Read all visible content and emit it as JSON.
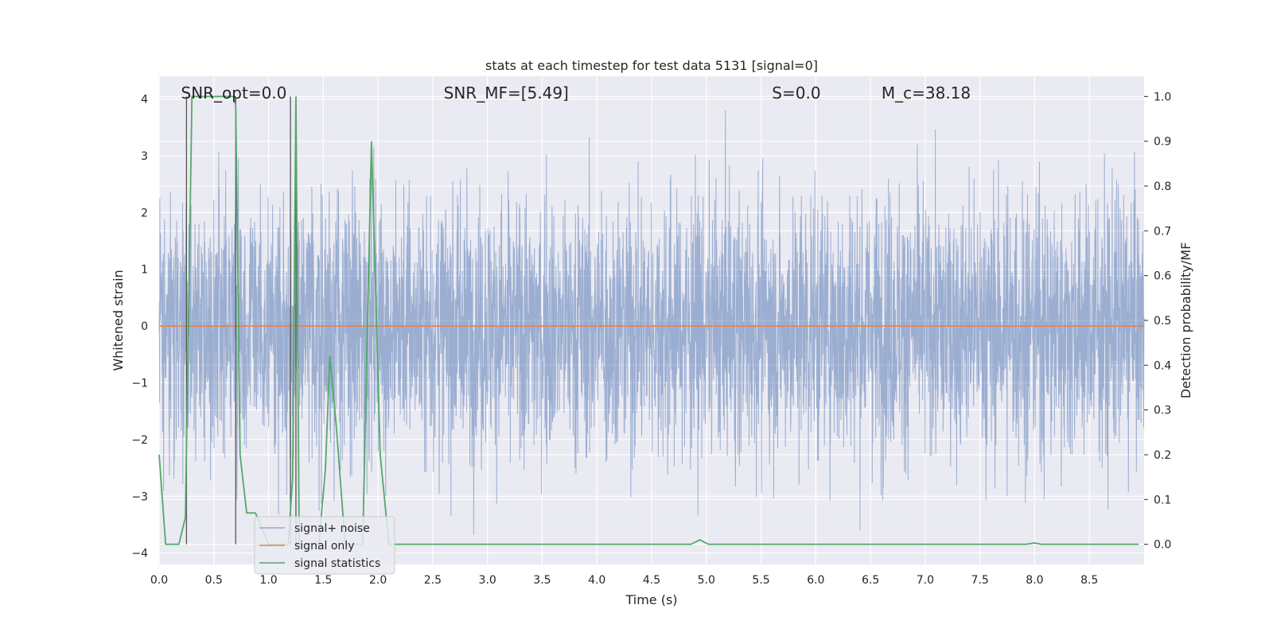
{
  "chart_data": {
    "type": "line",
    "title": "stats at each timestep for test data 5131 [signal=0]",
    "xlabel": "Time (s)",
    "ylabel": "Whitened strain",
    "y2label": "Detection probability/MF",
    "xlim": [
      0,
      9.0
    ],
    "ylim": [
      -4.2,
      4.4
    ],
    "y2lim": [
      -0.045,
      1.045
    ],
    "xticks": [
      0.0,
      0.5,
      1.0,
      1.5,
      2.0,
      2.5,
      3.0,
      3.5,
      4.0,
      4.5,
      5.0,
      5.5,
      6.0,
      6.5,
      7.0,
      7.5,
      8.0,
      8.5
    ],
    "yticks": [
      -4,
      -3,
      -2,
      -1,
      0,
      1,
      2,
      3,
      4
    ],
    "y2ticks": [
      0.0,
      0.1,
      0.2,
      0.3,
      0.4,
      0.5,
      0.6,
      0.7,
      0.8,
      0.9,
      1.0
    ],
    "grid": true,
    "legend_position": "lower-left",
    "annotations": [
      {
        "text": "SNR_opt=0.0",
        "x": 0.2
      },
      {
        "text": "SNR_MF=[5.49]",
        "x": 2.6
      },
      {
        "text": "S=0.0",
        "x": 5.6
      },
      {
        "text": "M_c=38.18",
        "x": 6.6
      }
    ],
    "series": [
      {
        "name": "signal+ noise",
        "color": "#4c72b0",
        "description": "dense whitened noise trace, approx amplitude within ±3.9",
        "envelope": {
          "min": -3.9,
          "max": 3.8
        }
      },
      {
        "name": "signal only",
        "color": "#dd8452",
        "x": [
          0.0,
          9.0
        ],
        "y": [
          0.0,
          0.0
        ]
      },
      {
        "name": "signal statistics",
        "color": "#55a868",
        "axis": "right",
        "x": [
          0.0,
          0.06,
          0.18,
          0.24,
          0.3,
          0.34,
          0.46,
          0.58,
          0.68,
          0.7,
          0.74,
          0.8,
          0.88,
          1.0,
          1.1,
          1.18,
          1.22,
          1.25,
          1.28,
          1.34,
          1.4,
          1.46,
          1.52,
          1.56,
          1.62,
          1.7,
          1.8,
          1.86,
          1.94,
          2.02,
          2.1,
          2.2,
          3.0,
          4.0,
          4.86,
          4.94,
          5.02,
          6.0,
          7.0,
          7.92,
          8.0,
          8.06,
          8.5,
          8.95
        ],
        "y": [
          0.2,
          0.0,
          0.0,
          0.06,
          1.0,
          1.0,
          1.0,
          1.0,
          1.0,
          0.98,
          0.2,
          0.07,
          0.07,
          0.0,
          0.0,
          0.0,
          0.15,
          1.0,
          0.0,
          0.0,
          0.0,
          0.0,
          0.17,
          0.42,
          0.26,
          0.0,
          0.0,
          0.0,
          0.9,
          0.2,
          0.0,
          0.0,
          0.0,
          0.0,
          0.0,
          0.01,
          0.0,
          0.0,
          0.0,
          0.0,
          0.003,
          0.0,
          0.0,
          0.0
        ]
      }
    ]
  }
}
